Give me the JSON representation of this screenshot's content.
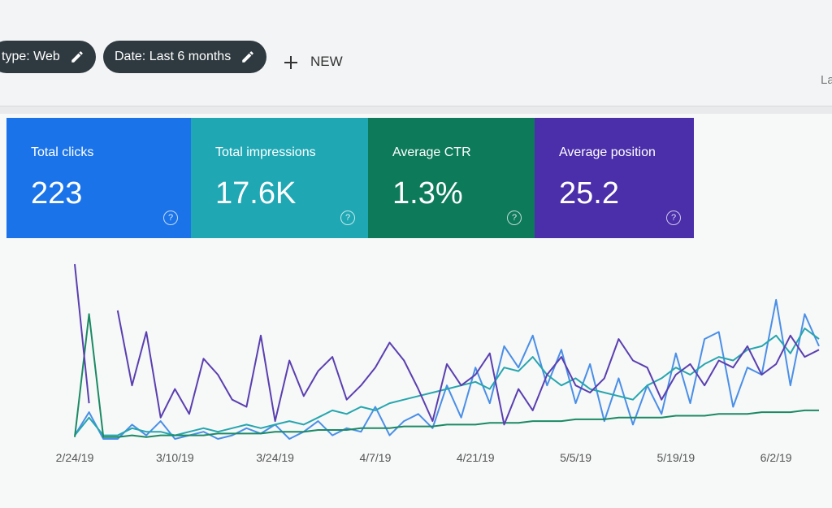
{
  "toolbar": {
    "filters": [
      "type: Web",
      "Date: Last 6 months"
    ],
    "add": "NEW",
    "cut_off": "La"
  },
  "help_icon": "?",
  "chart_data": {
    "type": "line",
    "categories": [
      "2/24/19",
      null,
      null,
      null,
      null,
      null,
      null,
      "3/10/19",
      null,
      null,
      null,
      null,
      null,
      null,
      "3/24/19",
      null,
      null,
      null,
      null,
      null,
      null,
      "4/7/19",
      null,
      null,
      null,
      null,
      null,
      null,
      "4/21/19",
      null,
      null,
      null,
      null,
      null,
      null,
      "5/5/19",
      null,
      null,
      null,
      null,
      null,
      null,
      "5/19/19",
      null,
      null,
      null,
      null,
      null,
      null,
      "6/2/19",
      null,
      null,
      null
    ],
    "series": [
      {
        "name": "Total clicks",
        "total": "223",
        "color": "#1a73e8",
        "line_color": "#4a8fe7",
        "values": [
          2,
          15,
          0,
          0,
          8,
          2,
          10,
          0,
          2,
          4,
          0,
          2,
          6,
          3,
          8,
          0,
          4,
          10,
          2,
          6,
          4,
          18,
          2,
          10,
          14,
          6,
          30,
          12,
          40,
          20,
          52,
          40,
          58,
          30,
          50,
          20,
          42,
          10,
          34,
          8,
          30,
          14,
          48,
          20,
          56,
          60,
          18,
          40,
          36,
          78,
          30,
          70,
          52
        ]
      },
      {
        "name": "Total impressions",
        "total": "17.6K",
        "color": "#1fa8b4",
        "line_color": "#26a6ad",
        "values": [
          2,
          12,
          2,
          2,
          6,
          4,
          4,
          2,
          4,
          6,
          4,
          6,
          8,
          6,
          8,
          10,
          8,
          12,
          16,
          14,
          18,
          16,
          20,
          22,
          24,
          26,
          28,
          30,
          32,
          28,
          40,
          38,
          46,
          36,
          30,
          34,
          28,
          26,
          24,
          22,
          30,
          34,
          40,
          36,
          42,
          46,
          44,
          50,
          52,
          58,
          48,
          62,
          56
        ]
      },
      {
        "name": "Average CTR",
        "total": "1.3%",
        "color": "#0d7a5a",
        "line_color": "#1b8a64",
        "values": [
          1,
          70,
          1,
          1,
          2,
          1,
          2,
          2,
          2,
          2,
          3,
          3,
          3,
          3,
          4,
          4,
          4,
          5,
          5,
          5,
          6,
          6,
          6,
          7,
          7,
          7,
          8,
          8,
          8,
          9,
          9,
          9,
          10,
          10,
          10,
          11,
          11,
          11,
          12,
          12,
          12,
          12,
          13,
          13,
          13,
          14,
          14,
          14,
          15,
          15,
          15,
          16,
          16
        ]
      },
      {
        "name": "Average position",
        "total": "25.2",
        "color": "#4a2eaa",
        "line_color": "#5a3fb0",
        "values": [
          98,
          20,
          null,
          72,
          30,
          60,
          12,
          28,
          14,
          45,
          36,
          22,
          18,
          58,
          10,
          44,
          24,
          38,
          46,
          22,
          30,
          40,
          54,
          44,
          28,
          10,
          42,
          30,
          36,
          48,
          8,
          28,
          16,
          36,
          46,
          30,
          26,
          34,
          56,
          44,
          40,
          22,
          36,
          42,
          30,
          44,
          40,
          52,
          36,
          42,
          58,
          46,
          50
        ]
      }
    ]
  }
}
